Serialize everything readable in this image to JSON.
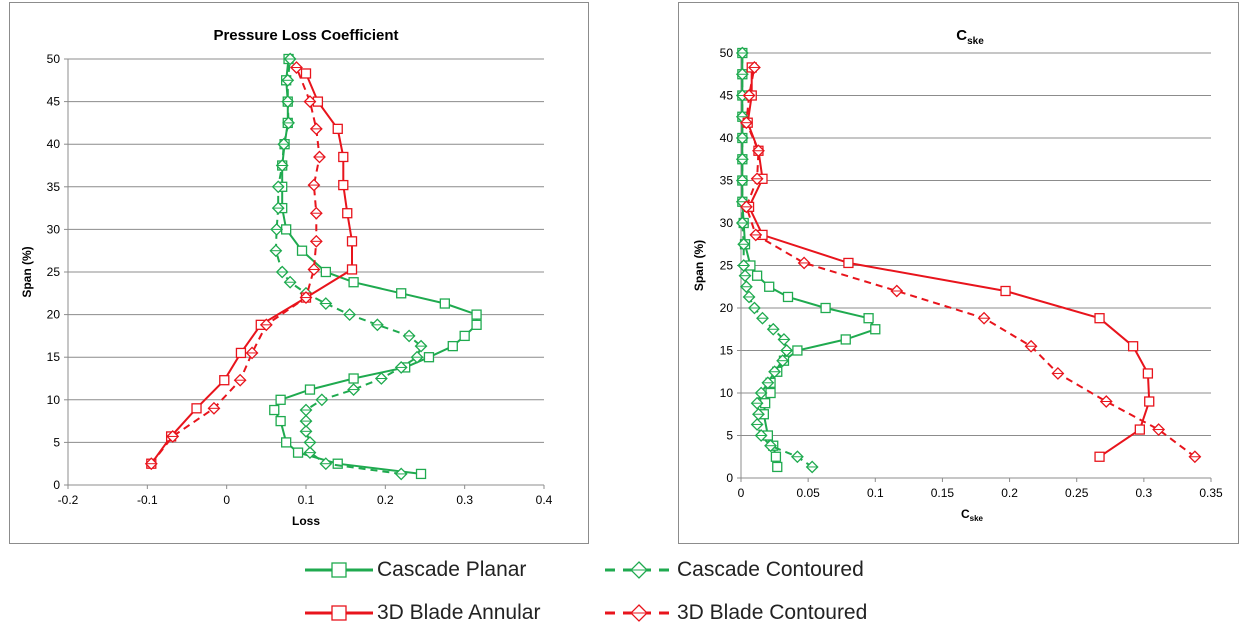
{
  "chart_data": [
    {
      "type": "line",
      "title": "Pressure Loss Coefficient",
      "xlabel": "Loss",
      "ylabel": "Span (%)",
      "xlim": [
        -0.2,
        0.4
      ],
      "ylim": [
        0,
        50
      ],
      "xticks": [
        "-0.2",
        "-0.1",
        "0",
        "0.1",
        "0.2",
        "0.3",
        "0.4"
      ],
      "yticks": [
        "0",
        "5",
        "10",
        "15",
        "20",
        "25",
        "30",
        "35",
        "40",
        "45",
        "50"
      ],
      "grid": "horizontal",
      "series": [
        {
          "name": "Cascade Planar",
          "points": [
            [
              0.245,
              1.3
            ],
            [
              0.14,
              2.5
            ],
            [
              0.09,
              3.8
            ],
            [
              0.075,
              5
            ],
            [
              0.068,
              7.5
            ],
            [
              0.06,
              8.8
            ],
            [
              0.068,
              10
            ],
            [
              0.105,
              11.2
            ],
            [
              0.16,
              12.5
            ],
            [
              0.225,
              13.8
            ],
            [
              0.255,
              15
            ],
            [
              0.285,
              16.3
            ],
            [
              0.3,
              17.5
            ],
            [
              0.315,
              18.8
            ],
            [
              0.315,
              20
            ],
            [
              0.275,
              21.3
            ],
            [
              0.22,
              22.5
            ],
            [
              0.16,
              23.8
            ],
            [
              0.125,
              25
            ],
            [
              0.095,
              27.5
            ],
            [
              0.075,
              30
            ],
            [
              0.07,
              32.5
            ],
            [
              0.07,
              35
            ],
            [
              0.07,
              37.5
            ],
            [
              0.073,
              40
            ],
            [
              0.077,
              42.5
            ],
            [
              0.077,
              45
            ],
            [
              0.075,
              47.5
            ],
            [
              0.078,
              50
            ]
          ]
        },
        {
          "name": "Cascade Contoured",
          "points": [
            [
              0.22,
              1.3
            ],
            [
              0.125,
              2.5
            ],
            [
              0.105,
              3.8
            ],
            [
              0.105,
              5
            ],
            [
              0.1,
              6.3
            ],
            [
              0.1,
              7.5
            ],
            [
              0.1,
              8.8
            ],
            [
              0.12,
              10
            ],
            [
              0.16,
              11.2
            ],
            [
              0.195,
              12.5
            ],
            [
              0.22,
              13.8
            ],
            [
              0.24,
              15
            ],
            [
              0.245,
              16.3
            ],
            [
              0.23,
              17.5
            ],
            [
              0.19,
              18.8
            ],
            [
              0.155,
              20
            ],
            [
              0.125,
              21.3
            ],
            [
              0.1,
              22.5
            ],
            [
              0.08,
              23.8
            ],
            [
              0.07,
              25
            ],
            [
              0.062,
              27.5
            ],
            [
              0.063,
              30
            ],
            [
              0.065,
              32.5
            ],
            [
              0.065,
              35
            ],
            [
              0.07,
              37.5
            ],
            [
              0.072,
              40
            ],
            [
              0.078,
              42.5
            ],
            [
              0.077,
              45
            ],
            [
              0.077,
              47.5
            ],
            [
              0.08,
              50
            ]
          ]
        },
        {
          "name": "3D Blade Annular",
          "points": [
            [
              -0.095,
              2.5
            ],
            [
              -0.07,
              5.7
            ],
            [
              -0.038,
              9
            ],
            [
              -0.003,
              12.3
            ],
            [
              0.018,
              15.5
            ],
            [
              0.043,
              18.8
            ],
            [
              0.1,
              22
            ],
            [
              0.158,
              25.3
            ],
            [
              0.158,
              28.6
            ],
            [
              0.152,
              31.9
            ],
            [
              0.147,
              35.2
            ],
            [
              0.147,
              38.5
            ],
            [
              0.14,
              41.8
            ],
            [
              0.115,
              45
            ],
            [
              0.1,
              48.3
            ]
          ]
        },
        {
          "name": "3D Blade Contoured",
          "points": [
            [
              -0.095,
              2.5
            ],
            [
              -0.068,
              5.7
            ],
            [
              -0.016,
              9
            ],
            [
              0.017,
              12.3
            ],
            [
              0.032,
              15.5
            ],
            [
              0.05,
              18.8
            ],
            [
              0.1,
              22
            ],
            [
              0.11,
              25.3
            ],
            [
              0.113,
              28.6
            ],
            [
              0.113,
              31.9
            ],
            [
              0.11,
              35.2
            ],
            [
              0.117,
              38.5
            ],
            [
              0.113,
              41.8
            ],
            [
              0.105,
              45
            ],
            [
              0.088,
              49
            ]
          ]
        }
      ]
    },
    {
      "type": "line",
      "title_main": "C",
      "title_sub": "ske",
      "xlabel_main": "C",
      "xlabel_sub": "ske",
      "ylabel": "Span (%)",
      "xlim": [
        0,
        0.35
      ],
      "ylim": [
        0,
        50
      ],
      "xticks": [
        "0",
        "0.05",
        "0.1",
        "0.15",
        "0.2",
        "0.25",
        "0.3",
        "0.35"
      ],
      "yticks": [
        "0",
        "5",
        "10",
        "15",
        "20",
        "25",
        "30",
        "35",
        "40",
        "45",
        "50"
      ],
      "grid": "horizontal",
      "series": [
        {
          "name": "Cascade Planar",
          "points": [
            [
              0.027,
              1.3
            ],
            [
              0.026,
              2.5
            ],
            [
              0.024,
              3.8
            ],
            [
              0.02,
              5
            ],
            [
              0.017,
              7.5
            ],
            [
              0.018,
              8.8
            ],
            [
              0.022,
              10
            ],
            [
              0.022,
              11.2
            ],
            [
              0.027,
              12.5
            ],
            [
              0.032,
              13.8
            ],
            [
              0.042,
              15
            ],
            [
              0.078,
              16.3
            ],
            [
              0.1,
              17.5
            ],
            [
              0.095,
              18.8
            ],
            [
              0.063,
              20
            ],
            [
              0.035,
              21.3
            ],
            [
              0.021,
              22.5
            ],
            [
              0.012,
              23.8
            ],
            [
              0.007,
              25
            ],
            [
              0.003,
              27.5
            ],
            [
              0.002,
              30
            ],
            [
              0.001,
              32.5
            ],
            [
              0.001,
              35
            ],
            [
              0.001,
              37.5
            ],
            [
              0.001,
              40
            ],
            [
              0.001,
              42.5
            ],
            [
              0.001,
              45
            ],
            [
              0.001,
              47.5
            ],
            [
              0.001,
              50
            ]
          ]
        },
        {
          "name": "Cascade Contoured",
          "points": [
            [
              0.053,
              1.3
            ],
            [
              0.042,
              2.5
            ],
            [
              0.022,
              3.8
            ],
            [
              0.015,
              5
            ],
            [
              0.012,
              6.3
            ],
            [
              0.013,
              7.5
            ],
            [
              0.012,
              8.8
            ],
            [
              0.015,
              10
            ],
            [
              0.02,
              11.2
            ],
            [
              0.025,
              12.5
            ],
            [
              0.031,
              13.8
            ],
            [
              0.034,
              15
            ],
            [
              0.032,
              16.3
            ],
            [
              0.024,
              17.5
            ],
            [
              0.016,
              18.8
            ],
            [
              0.01,
              20
            ],
            [
              0.006,
              21.3
            ],
            [
              0.004,
              22.5
            ],
            [
              0.003,
              23.8
            ],
            [
              0.002,
              25
            ],
            [
              0.002,
              27.5
            ],
            [
              0.001,
              30
            ],
            [
              0.001,
              32.5
            ],
            [
              0.001,
              35
            ],
            [
              0.001,
              37.5
            ],
            [
              0.001,
              40
            ],
            [
              0.001,
              42.5
            ],
            [
              0.001,
              45
            ],
            [
              0.001,
              47.5
            ],
            [
              0.001,
              50
            ]
          ]
        },
        {
          "name": "3D Blade Annular",
          "points": [
            [
              0.267,
              2.5
            ],
            [
              0.297,
              5.7
            ],
            [
              0.304,
              9
            ],
            [
              0.303,
              12.3
            ],
            [
              0.292,
              15.5
            ],
            [
              0.267,
              18.8
            ],
            [
              0.197,
              22
            ],
            [
              0.08,
              25.3
            ],
            [
              0.016,
              28.6
            ],
            [
              0.006,
              31.9
            ],
            [
              0.016,
              35.2
            ],
            [
              0.013,
              38.5
            ],
            [
              0.005,
              41.8
            ],
            [
              0.008,
              45
            ],
            [
              0.008,
              48.3
            ]
          ]
        },
        {
          "name": "3D Blade Contoured",
          "points": [
            [
              0.338,
              2.5
            ],
            [
              0.311,
              5.7
            ],
            [
              0.272,
              9
            ],
            [
              0.236,
              12.3
            ],
            [
              0.216,
              15.5
            ],
            [
              0.181,
              18.8
            ],
            [
              0.116,
              22
            ],
            [
              0.047,
              25.3
            ],
            [
              0.011,
              28.6
            ],
            [
              0.004,
              31.9
            ],
            [
              0.012,
              35.2
            ],
            [
              0.013,
              38.5
            ],
            [
              0.004,
              41.8
            ],
            [
              0.006,
              45
            ],
            [
              0.01,
              48.3
            ]
          ]
        }
      ]
    }
  ],
  "legend": {
    "placement": "bottom",
    "items": [
      {
        "label": "Cascade Planar",
        "color": "#1faa4f",
        "style": "solid",
        "marker": "square"
      },
      {
        "label": "Cascade Contoured",
        "color": "#1faa4f",
        "style": "dashed",
        "marker": "diamond"
      },
      {
        "label": "3D Blade Annular",
        "color": "#e8141c",
        "style": "solid",
        "marker": "square"
      },
      {
        "label": "3D Blade Contoured",
        "color": "#e8141c",
        "style": "dashed",
        "marker": "diamond"
      }
    ]
  }
}
